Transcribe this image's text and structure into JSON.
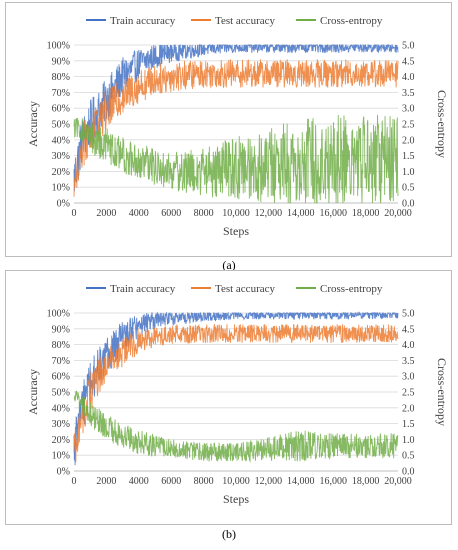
{
  "chart_data": [
    {
      "type": "line",
      "panel_label": "(a)",
      "xlabel": "Steps",
      "ylabel": "Accuracy",
      "y2label": "Cross-entropy",
      "xlim": [
        0,
        20000
      ],
      "ylim": [
        0,
        100
      ],
      "y2lim": [
        0,
        5
      ],
      "xticks": [
        "0",
        "2000",
        "4000",
        "6000",
        "8000",
        "10,000",
        "12,000",
        "14,000",
        "16,000",
        "18,000",
        "20,000"
      ],
      "yticks": [
        "0%",
        "10%",
        "20%",
        "30%",
        "40%",
        "50%",
        "60%",
        "70%",
        "80%",
        "90%",
        "100%"
      ],
      "y2ticks": [
        "0.0",
        "0.5",
        "1.0",
        "1.5",
        "2.0",
        "2.5",
        "3.0",
        "3.5",
        "4.0",
        "4.5",
        "5.0"
      ],
      "grid": true,
      "legend": "top",
      "series": [
        {
          "name": "Train accuracy",
          "axis": "left",
          "color": "#4472c4",
          "x": [
            0,
            500,
            1000,
            1500,
            2000,
            3000,
            4000,
            5000,
            6000,
            8000,
            10000,
            12000,
            14000,
            16000,
            18000,
            20000
          ],
          "y": [
            15,
            40,
            50,
            58,
            65,
            80,
            88,
            93,
            96,
            98,
            99,
            99,
            99,
            99,
            99,
            99
          ],
          "spread": [
            15,
            15,
            15,
            14,
            14,
            12,
            10,
            8,
            7,
            5,
            4,
            4,
            4,
            4,
            4,
            4
          ]
        },
        {
          "name": "Test accuracy",
          "axis": "left",
          "color": "#ed7d31",
          "x": [
            0,
            500,
            1000,
            1500,
            2000,
            3000,
            4000,
            5000,
            6000,
            8000,
            10000,
            12000,
            14000,
            16000,
            18000,
            20000
          ],
          "y": [
            12,
            35,
            45,
            52,
            58,
            68,
            74,
            78,
            80,
            82,
            82,
            82,
            82,
            82,
            82,
            82
          ],
          "spread": [
            12,
            14,
            14,
            14,
            13,
            12,
            11,
            10,
            10,
            9,
            9,
            9,
            9,
            9,
            9,
            9
          ]
        },
        {
          "name": "Cross-entropy",
          "axis": "right",
          "color": "#70ad47",
          "x": [
            0,
            500,
            1000,
            2000,
            3000,
            4000,
            6000,
            8000,
            10000,
            12000,
            14000,
            16000,
            18000,
            20000
          ],
          "y": [
            2.4,
            2.3,
            2.1,
            1.8,
            1.5,
            1.3,
            1.0,
            1.0,
            1.1,
            1.2,
            1.3,
            1.3,
            1.4,
            1.4
          ],
          "spread": [
            0.3,
            0.4,
            0.5,
            0.6,
            0.6,
            0.6,
            0.6,
            0.8,
            1.0,
            1.2,
            1.4,
            1.5,
            1.5,
            1.5
          ]
        }
      ]
    },
    {
      "type": "line",
      "panel_label": "(b)",
      "xlabel": "Steps",
      "ylabel": "Accuracy",
      "y2label": "Cross-entropy",
      "xlim": [
        0,
        20000
      ],
      "ylim": [
        0,
        100
      ],
      "y2lim": [
        0,
        5
      ],
      "xticks": [
        "0",
        "2000",
        "4000",
        "6000",
        "8000",
        "10,000",
        "12,000",
        "14,000",
        "16,000",
        "18,000",
        "20,000"
      ],
      "yticks": [
        "0%",
        "10%",
        "20%",
        "30%",
        "40%",
        "50%",
        "60%",
        "70%",
        "80%",
        "90%",
        "100%"
      ],
      "y2ticks": [
        "0.0",
        "0.5",
        "1.0",
        "1.5",
        "2.0",
        "2.5",
        "3.0",
        "3.5",
        "4.0",
        "4.5",
        "5.0"
      ],
      "grid": true,
      "legend": "top",
      "series": [
        {
          "name": "Train accuracy",
          "axis": "left",
          "color": "#4472c4",
          "x": [
            0,
            500,
            1000,
            1500,
            2000,
            3000,
            4000,
            5000,
            6000,
            8000,
            10000,
            12000,
            14000,
            16000,
            18000,
            20000
          ],
          "y": [
            15,
            40,
            55,
            65,
            72,
            85,
            92,
            96,
            97,
            98,
            99,
            99,
            99,
            99,
            99,
            99
          ],
          "spread": [
            15,
            15,
            14,
            13,
            12,
            10,
            8,
            6,
            5,
            4,
            3,
            3,
            3,
            3,
            3,
            3
          ]
        },
        {
          "name": "Test accuracy",
          "axis": "left",
          "color": "#ed7d31",
          "x": [
            0,
            500,
            1000,
            1500,
            2000,
            3000,
            4000,
            5000,
            6000,
            8000,
            10000,
            12000,
            14000,
            16000,
            18000,
            20000
          ],
          "y": [
            12,
            35,
            50,
            60,
            66,
            76,
            82,
            85,
            86,
            87,
            87,
            87,
            87,
            87,
            87,
            87
          ],
          "spread": [
            12,
            14,
            13,
            12,
            11,
            10,
            8,
            6,
            6,
            6,
            6,
            6,
            6,
            6,
            6,
            6
          ]
        },
        {
          "name": "Cross-entropy",
          "axis": "right",
          "color": "#70ad47",
          "x": [
            0,
            500,
            1000,
            2000,
            3000,
            4000,
            6000,
            8000,
            10000,
            12000,
            14000,
            16000,
            18000,
            20000
          ],
          "y": [
            2.4,
            2.1,
            1.8,
            1.4,
            1.1,
            0.9,
            0.7,
            0.6,
            0.6,
            0.7,
            0.8,
            0.8,
            0.8,
            0.8
          ],
          "spread": [
            0.2,
            0.3,
            0.4,
            0.4,
            0.4,
            0.4,
            0.3,
            0.3,
            0.3,
            0.4,
            0.5,
            0.4,
            0.4,
            0.4
          ]
        }
      ]
    }
  ]
}
